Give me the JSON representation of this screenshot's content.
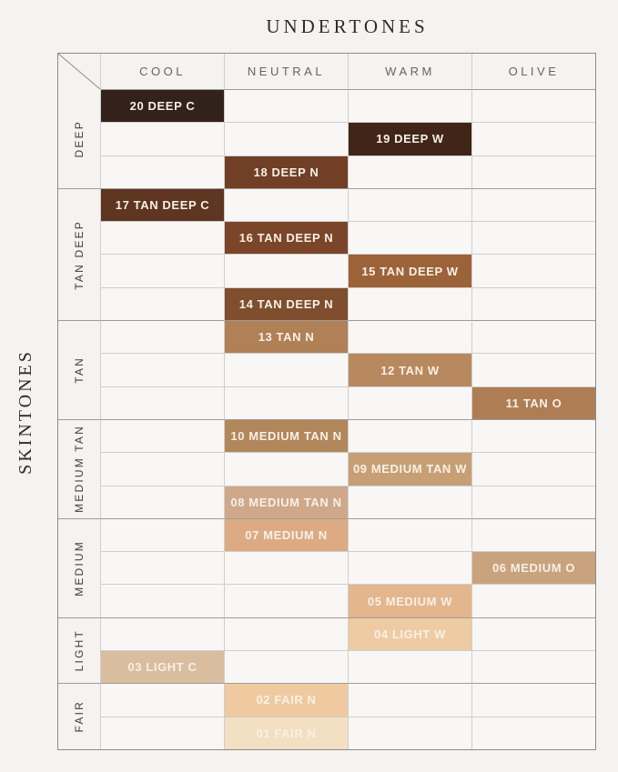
{
  "chart_data": {
    "type": "table",
    "title": "UNDERTONES",
    "row_axis_label": "SKINTONES",
    "columns": [
      "COOL",
      "NEUTRAL",
      "WARM",
      "OLIVE"
    ],
    "groups": [
      {
        "label": "DEEP",
        "row_count": 3
      },
      {
        "label": "TAN DEEP",
        "row_count": 4
      },
      {
        "label": "TAN",
        "row_count": 3
      },
      {
        "label": "MEDIUM TAN",
        "row_count": 3
      },
      {
        "label": "MEDIUM",
        "row_count": 3
      },
      {
        "label": "LIGHT",
        "row_count": 2
      },
      {
        "label": "FAIR",
        "row_count": 2
      }
    ],
    "rows": [
      {
        "shade": "20 DEEP C",
        "group": "DEEP",
        "column": "COOL",
        "color": "#33221a"
      },
      {
        "shade": "19 DEEP W",
        "group": "DEEP",
        "column": "WARM",
        "color": "#402518"
      },
      {
        "shade": "18 DEEP N",
        "group": "DEEP",
        "column": "NEUTRAL",
        "color": "#713f26"
      },
      {
        "shade": "17 TAN DEEP C",
        "group": "TAN DEEP",
        "column": "COOL",
        "color": "#5e3520"
      },
      {
        "shade": "16 TAN DEEP N",
        "group": "TAN DEEP",
        "column": "NEUTRAL",
        "color": "#7a4528"
      },
      {
        "shade": "15 TAN DEEP W",
        "group": "TAN DEEP",
        "column": "WARM",
        "color": "#9c6238"
      },
      {
        "shade": "14 TAN DEEP N",
        "group": "TAN DEEP",
        "column": "NEUTRAL",
        "color": "#7e4e2e"
      },
      {
        "shade": "13 TAN N",
        "group": "TAN",
        "column": "NEUTRAL",
        "color": "#b08057"
      },
      {
        "shade": "12 TAN W",
        "group": "TAN",
        "column": "WARM",
        "color": "#b8895f"
      },
      {
        "shade": "11 TAN O",
        "group": "TAN",
        "column": "OLIVE",
        "color": "#af7d53"
      },
      {
        "shade": "10 MEDIUM TAN N",
        "group": "MEDIUM TAN",
        "column": "NEUTRAL",
        "color": "#b2875c"
      },
      {
        "shade": "09 MEDIUM TAN W",
        "group": "MEDIUM TAN",
        "column": "WARM",
        "color": "#c6a074"
      },
      {
        "shade": "08 MEDIUM TAN N",
        "group": "MEDIUM TAN",
        "column": "NEUTRAL",
        "color": "#cfa88a"
      },
      {
        "shade": "07 MEDIUM N",
        "group": "MEDIUM",
        "column": "NEUTRAL",
        "color": "#dcab84"
      },
      {
        "shade": "06 MEDIUM O",
        "group": "MEDIUM",
        "column": "OLIVE",
        "color": "#c8a37d"
      },
      {
        "shade": "05 MEDIUM W",
        "group": "MEDIUM",
        "column": "WARM",
        "color": "#e3b68e"
      },
      {
        "shade": "04 LIGHT W",
        "group": "LIGHT",
        "column": "WARM",
        "color": "#eecba3"
      },
      {
        "shade": "03 LIGHT C",
        "group": "LIGHT",
        "column": "COOL",
        "color": "#dabd9f"
      },
      {
        "shade": "02 FAIR N",
        "group": "FAIR",
        "column": "NEUTRAL",
        "color": "#efcaa0"
      },
      {
        "shade": "01 FAIR N",
        "group": "FAIR",
        "column": "NEUTRAL",
        "color": "#f3dfc1"
      }
    ],
    "colors": {
      "background": "#f4f3f1",
      "empty_cell": "#f8f7f5",
      "grid_line": "#d0cecb",
      "group_line": "#9d9b98",
      "outer_border": "#8d8b88",
      "cell_text": "#f7f0e7",
      "header_text": "#666461",
      "title_text": "#2e2b28"
    }
  }
}
